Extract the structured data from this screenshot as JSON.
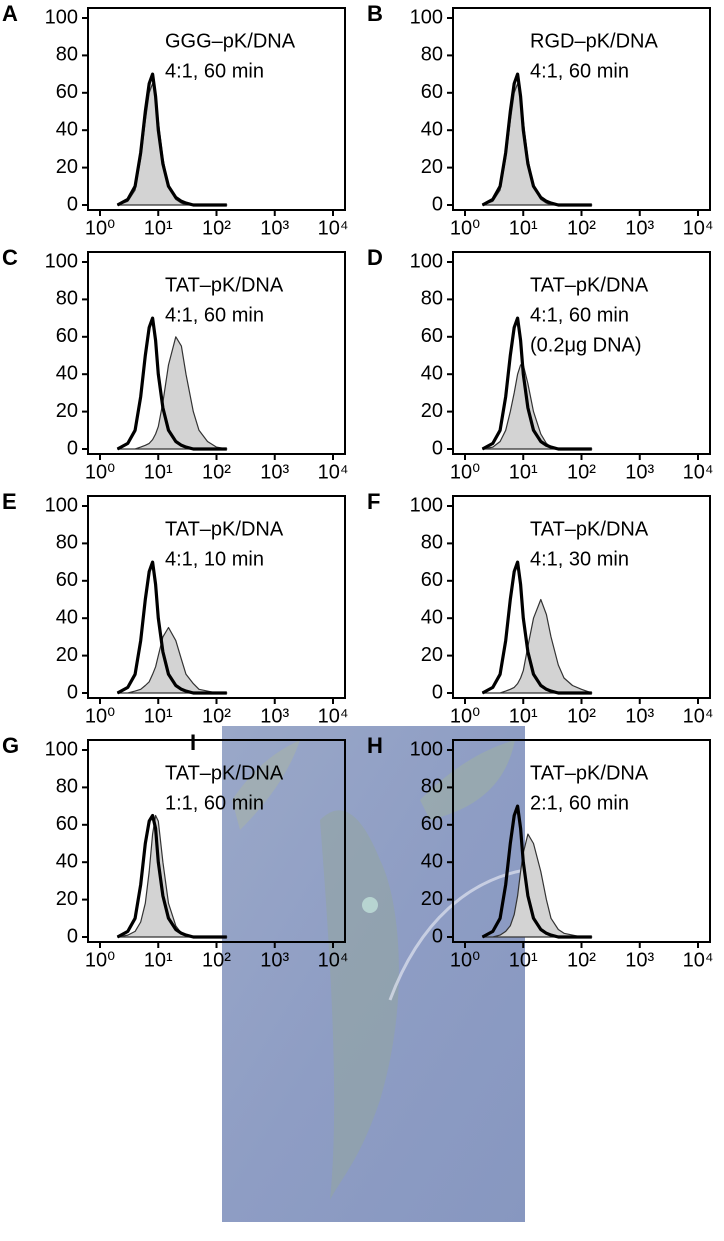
{
  "chart_data": [
    {
      "type": "area",
      "panel_label": "A",
      "annotations": [
        "GGG–pK/DNA",
        "4:1, 60 min"
      ],
      "xscale": "log",
      "x": [
        2,
        3,
        4,
        5,
        6,
        7,
        8,
        9,
        10,
        12,
        15,
        20,
        25,
        30,
        40,
        50,
        70,
        100,
        150
      ],
      "series": [
        {
          "color": "#d3d3d3",
          "fill": true,
          "values": [
            0,
            2,
            8,
            25,
            45,
            60,
            65,
            60,
            45,
            25,
            10,
            3,
            1,
            0,
            0,
            0,
            0,
            0,
            0
          ]
        },
        {
          "color": "#000000",
          "fill": false,
          "values": [
            0,
            3,
            10,
            28,
            50,
            65,
            70,
            58,
            40,
            22,
            10,
            4,
            2,
            1,
            0,
            0,
            0,
            0,
            0
          ]
        }
      ],
      "xlim": [
        1,
        10000
      ],
      "xticks": [
        {
          "value": 1,
          "label": "10⁰"
        },
        {
          "value": 10,
          "label": "10¹"
        },
        {
          "value": 100,
          "label": "10²"
        },
        {
          "value": 1000,
          "label": "10³"
        },
        {
          "value": 10000,
          "label": "10⁴"
        }
      ],
      "ylim": [
        0,
        100
      ],
      "yticks": [
        0,
        20,
        40,
        60,
        80,
        100
      ]
    },
    {
      "type": "area",
      "panel_label": "B",
      "annotations": [
        "RGD–pK/DNA",
        "4:1, 60 min"
      ],
      "xscale": "log",
      "x": [
        2,
        3,
        4,
        5,
        6,
        7,
        8,
        9,
        10,
        12,
        15,
        20,
        25,
        30,
        40,
        50,
        70,
        100,
        150
      ],
      "series": [
        {
          "color": "#d3d3d3",
          "fill": true,
          "values": [
            0,
            2,
            8,
            25,
            45,
            60,
            65,
            60,
            45,
            25,
            10,
            3,
            1,
            0,
            0,
            0,
            0,
            0,
            0
          ]
        },
        {
          "color": "#000000",
          "fill": false,
          "values": [
            0,
            3,
            10,
            28,
            50,
            65,
            70,
            58,
            40,
            22,
            10,
            4,
            2,
            1,
            0,
            0,
            0,
            0,
            0
          ]
        }
      ],
      "xlim": [
        1,
        10000
      ],
      "xticks": [
        {
          "value": 1,
          "label": "10⁰"
        },
        {
          "value": 10,
          "label": "10¹"
        },
        {
          "value": 100,
          "label": "10²"
        },
        {
          "value": 1000,
          "label": "10³"
        },
        {
          "value": 10000,
          "label": "10⁴"
        }
      ],
      "ylim": [
        0,
        100
      ],
      "yticks": [
        0,
        20,
        40,
        60,
        80,
        100
      ]
    },
    {
      "type": "area",
      "panel_label": "C",
      "annotations": [
        "TAT–pK/DNA",
        "4:1, 60 min"
      ],
      "xscale": "log",
      "x": [
        2,
        3,
        4,
        5,
        6,
        7,
        8,
        9,
        10,
        12,
        15,
        20,
        25,
        30,
        40,
        50,
        70,
        100,
        150
      ],
      "series": [
        {
          "color": "#d3d3d3",
          "fill": true,
          "values": [
            0,
            0,
            0,
            1,
            2,
            3,
            5,
            8,
            12,
            25,
            45,
            60,
            55,
            40,
            20,
            10,
            4,
            1,
            0
          ]
        },
        {
          "color": "#000000",
          "fill": false,
          "values": [
            0,
            3,
            10,
            28,
            50,
            65,
            70,
            58,
            40,
            22,
            10,
            4,
            2,
            1,
            0,
            0,
            0,
            0,
            0
          ]
        }
      ],
      "xlim": [
        1,
        10000
      ],
      "xticks": [
        {
          "value": 1,
          "label": "10⁰"
        },
        {
          "value": 10,
          "label": "10¹"
        },
        {
          "value": 100,
          "label": "10²"
        },
        {
          "value": 1000,
          "label": "10³"
        },
        {
          "value": 10000,
          "label": "10⁴"
        }
      ],
      "ylim": [
        0,
        100
      ],
      "yticks": [
        0,
        20,
        40,
        60,
        80,
        100
      ]
    },
    {
      "type": "area",
      "panel_label": "D",
      "annotations": [
        "TAT–pK/DNA",
        "4:1, 60 min",
        "(0.2μg DNA)"
      ],
      "xscale": "log",
      "x": [
        2,
        3,
        4,
        5,
        6,
        7,
        8,
        9,
        10,
        12,
        15,
        20,
        25,
        30,
        40,
        50,
        70,
        100,
        150
      ],
      "series": [
        {
          "color": "#d3d3d3",
          "fill": true,
          "values": [
            0,
            1,
            4,
            10,
            20,
            30,
            40,
            45,
            45,
            35,
            20,
            8,
            3,
            1,
            0,
            0,
            0,
            0,
            0
          ]
        },
        {
          "color": "#000000",
          "fill": false,
          "values": [
            0,
            3,
            10,
            28,
            50,
            65,
            70,
            58,
            40,
            22,
            10,
            4,
            2,
            1,
            0,
            0,
            0,
            0,
            0
          ]
        }
      ],
      "xlim": [
        1,
        10000
      ],
      "xticks": [
        {
          "value": 1,
          "label": "10⁰"
        },
        {
          "value": 10,
          "label": "10¹"
        },
        {
          "value": 100,
          "label": "10²"
        },
        {
          "value": 1000,
          "label": "10³"
        },
        {
          "value": 10000,
          "label": "10⁴"
        }
      ],
      "ylim": [
        0,
        100
      ],
      "yticks": [
        0,
        20,
        40,
        60,
        80,
        100
      ]
    },
    {
      "type": "area",
      "panel_label": "E",
      "annotations": [
        "TAT–pK/DNA",
        "4:1, 10 min"
      ],
      "xscale": "log",
      "x": [
        2,
        3,
        4,
        5,
        6,
        7,
        8,
        9,
        10,
        12,
        15,
        20,
        25,
        30,
        40,
        50,
        70,
        100,
        150
      ],
      "series": [
        {
          "color": "#d3d3d3",
          "fill": true,
          "values": [
            0,
            0,
            1,
            2,
            4,
            6,
            10,
            14,
            20,
            30,
            35,
            28,
            18,
            10,
            5,
            2,
            1,
            0,
            0
          ]
        },
        {
          "color": "#000000",
          "fill": false,
          "values": [
            0,
            3,
            10,
            28,
            50,
            65,
            70,
            58,
            40,
            22,
            10,
            4,
            2,
            1,
            0,
            0,
            0,
            0,
            0
          ]
        }
      ],
      "xlim": [
        1,
        10000
      ],
      "xticks": [
        {
          "value": 1,
          "label": "10⁰"
        },
        {
          "value": 10,
          "label": "10¹"
        },
        {
          "value": 100,
          "label": "10²"
        },
        {
          "value": 1000,
          "label": "10³"
        },
        {
          "value": 10000,
          "label": "10⁴"
        }
      ],
      "ylim": [
        0,
        100
      ],
      "yticks": [
        0,
        20,
        40,
        60,
        80,
        100
      ]
    },
    {
      "type": "area",
      "panel_label": "F",
      "annotations": [
        "TAT–pK/DNA",
        "4:1, 30 min"
      ],
      "xscale": "log",
      "x": [
        2,
        3,
        4,
        5,
        6,
        7,
        8,
        9,
        10,
        12,
        15,
        20,
        25,
        30,
        40,
        50,
        70,
        100,
        150
      ],
      "series": [
        {
          "color": "#d3d3d3",
          "fill": true,
          "values": [
            0,
            0,
            0,
            1,
            2,
            3,
            5,
            8,
            12,
            25,
            40,
            50,
            42,
            30,
            15,
            8,
            4,
            2,
            0
          ]
        },
        {
          "color": "#000000",
          "fill": false,
          "values": [
            0,
            3,
            10,
            28,
            50,
            65,
            70,
            58,
            40,
            22,
            10,
            4,
            2,
            1,
            0,
            0,
            0,
            0,
            0
          ]
        }
      ],
      "xlim": [
        1,
        10000
      ],
      "xticks": [
        {
          "value": 1,
          "label": "10⁰"
        },
        {
          "value": 10,
          "label": "10¹"
        },
        {
          "value": 100,
          "label": "10²"
        },
        {
          "value": 1000,
          "label": "10³"
        },
        {
          "value": 10000,
          "label": "10⁴"
        }
      ],
      "ylim": [
        0,
        100
      ],
      "yticks": [
        0,
        20,
        40,
        60,
        80,
        100
      ]
    },
    {
      "type": "area",
      "panel_label": "G",
      "annotations": [
        "TAT–pK/DNA",
        "1:1, 60 min"
      ],
      "xscale": "log",
      "x": [
        2,
        3,
        4,
        5,
        6,
        7,
        8,
        9,
        10,
        12,
        15,
        20,
        25,
        30,
        40,
        50,
        70,
        100,
        150
      ],
      "series": [
        {
          "color": "#d3d3d3",
          "fill": true,
          "values": [
            0,
            1,
            3,
            8,
            18,
            35,
            55,
            65,
            62,
            40,
            18,
            6,
            2,
            1,
            0,
            0,
            0,
            0,
            0
          ]
        },
        {
          "color": "#000000",
          "fill": false,
          "values": [
            0,
            3,
            10,
            28,
            50,
            62,
            65,
            58,
            40,
            22,
            10,
            4,
            2,
            1,
            0,
            0,
            0,
            0,
            0
          ]
        }
      ],
      "xlim": [
        1,
        10000
      ],
      "xticks": [
        {
          "value": 1,
          "label": "10⁰"
        },
        {
          "value": 10,
          "label": "10¹"
        },
        {
          "value": 100,
          "label": "10²"
        },
        {
          "value": 1000,
          "label": "10³"
        },
        {
          "value": 10000,
          "label": "10⁴"
        }
      ],
      "ylim": [
        0,
        100
      ],
      "yticks": [
        0,
        20,
        40,
        60,
        80,
        100
      ]
    },
    {
      "type": "area",
      "panel_label": "H",
      "annotations": [
        "TAT–pK/DNA",
        "2:1, 60 min"
      ],
      "xscale": "log",
      "x": [
        2,
        3,
        4,
        5,
        6,
        7,
        8,
        9,
        10,
        12,
        15,
        20,
        25,
        30,
        40,
        50,
        70,
        100,
        150
      ],
      "series": [
        {
          "color": "#d3d3d3",
          "fill": true,
          "values": [
            0,
            0,
            1,
            3,
            6,
            12,
            22,
            35,
            45,
            55,
            50,
            35,
            20,
            10,
            4,
            2,
            1,
            0,
            0
          ]
        },
        {
          "color": "#000000",
          "fill": false,
          "values": [
            0,
            3,
            10,
            28,
            50,
            65,
            70,
            58,
            40,
            22,
            10,
            4,
            2,
            1,
            0,
            0,
            0,
            0,
            0
          ]
        }
      ],
      "xlim": [
        1,
        10000
      ],
      "xticks": [
        {
          "value": 1,
          "label": "10⁰"
        },
        {
          "value": 10,
          "label": "10¹"
        },
        {
          "value": 100,
          "label": "10²"
        },
        {
          "value": 1000,
          "label": "10³"
        },
        {
          "value": 10000,
          "label": "10⁴"
        }
      ],
      "ylim": [
        0,
        100
      ],
      "yticks": [
        0,
        20,
        40,
        60,
        80,
        100
      ]
    }
  ],
  "image_panel": {
    "label": "I"
  }
}
